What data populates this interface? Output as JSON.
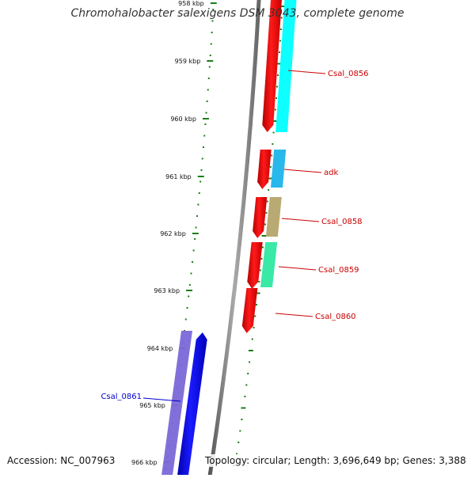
{
  "title": "Chromohalobacter salexigens DSM 3043, complete genome",
  "footer": {
    "accession": "Accession: NC_007963",
    "summary": "Topology: circular; Length: 3,696,649 bp; Genes: 3,388"
  },
  "ruler": {
    "labels": [
      "958 kbp",
      "959 kbp",
      "960 kbp",
      "961 kbp",
      "962 kbp",
      "963 kbp",
      "964 kbp",
      "965 kbp",
      "966 kbp"
    ],
    "tick_color": "#1a7f1a"
  },
  "genes": [
    {
      "name": "Csal_0856",
      "strand": "-",
      "label_color": "#cc0000",
      "fill": "#ff0000",
      "cog_fill": "#00ffff"
    },
    {
      "name": "adk",
      "strand": "-",
      "label_color": "#cc0000",
      "fill": "#ff0000",
      "cog_fill": "#1eb4ea"
    },
    {
      "name": "Csal_0858",
      "strand": "-",
      "label_color": "#cc0000",
      "fill": "#ff0000",
      "cog_fill": "#b5a46a"
    },
    {
      "name": "Csal_0859",
      "strand": "-",
      "label_color": "#cc0000",
      "fill": "#ff0000",
      "cog_fill": "#2ee8a0"
    },
    {
      "name": "Csal_0860",
      "strand": "-",
      "label_color": "#cc0000",
      "fill": "#ff0000",
      "cog_fill": null
    },
    {
      "name": "Csal_0861",
      "strand": "+",
      "label_color": "#0000cc",
      "fill": "#0000ff",
      "cog_fill": "#7b68d8"
    }
  ],
  "colors": {
    "backbone": "#888888",
    "forward_gene": "#0000ff",
    "reverse_gene": "#ff0000"
  }
}
